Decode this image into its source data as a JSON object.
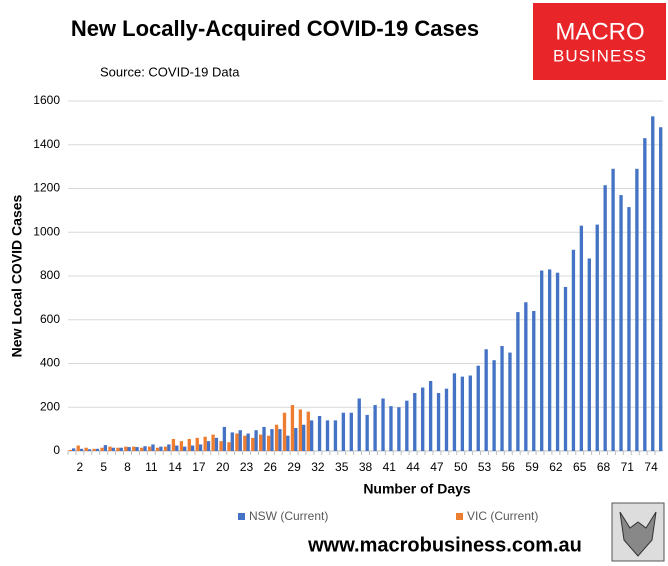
{
  "chart_data": {
    "type": "bar",
    "title": "New Locally-Acquired COVID-19 Cases",
    "subtitle": "Source: COVID-19 Data",
    "logo": [
      "MACRO",
      "BUSINESS"
    ],
    "footer": "www.macrobusiness.com.au",
    "x_label": "Number of Days",
    "y_label": "New Local COVID Cases",
    "categories": [
      null,
      2,
      null,
      null,
      5,
      null,
      null,
      8,
      null,
      null,
      11,
      null,
      null,
      14,
      null,
      null,
      17,
      null,
      null,
      20,
      null,
      null,
      23,
      null,
      null,
      26,
      null,
      null,
      29,
      null,
      null,
      32,
      null,
      null,
      35,
      null,
      null,
      38,
      null,
      null,
      41,
      null,
      null,
      44,
      null,
      null,
      47,
      null,
      null,
      50,
      null,
      null,
      53,
      null,
      null,
      56,
      null,
      null,
      59,
      null,
      null,
      62,
      null,
      null,
      65,
      null,
      null,
      68,
      null,
      null,
      71,
      null,
      null,
      74,
      null
    ],
    "series": [
      {
        "name": "NSW (Current)",
        "color": "#4472c4",
        "values": [
          12,
          10,
          8,
          10,
          27,
          15,
          15,
          18,
          18,
          22,
          30,
          20,
          30,
          25,
          20,
          25,
          30,
          45,
          60,
          110,
          85,
          95,
          80,
          95,
          110,
          100,
          100,
          70,
          105,
          120,
          140,
          160,
          140,
          140,
          175,
          175,
          240,
          165,
          210,
          240,
          205,
          200,
          230,
          265,
          290,
          320,
          265,
          285,
          355,
          340,
          345,
          390,
          465,
          415,
          480,
          450,
          635,
          680,
          640,
          825,
          830,
          815,
          750,
          920,
          1030,
          880,
          1035,
          1215,
          1290,
          1170,
          1115,
          1290,
          1430,
          1530,
          1480
        ]
      },
      {
        "name": "VIC (Current)",
        "color": "#ed7d31",
        "values": [
          5,
          25,
          15,
          10,
          15,
          20,
          15,
          20,
          20,
          15,
          20,
          15,
          20,
          55,
          45,
          55,
          60,
          65,
          75,
          45,
          40,
          80,
          70,
          60,
          75,
          70,
          120,
          175,
          210,
          190,
          180,
          null,
          null,
          null,
          null,
          null,
          null,
          null,
          null,
          null,
          null,
          null,
          null,
          null,
          null,
          null,
          null,
          null,
          null,
          null,
          null,
          null,
          null,
          null,
          null,
          null,
          null,
          null,
          null,
          null,
          null,
          null,
          null,
          null,
          null,
          null,
          null,
          null,
          null,
          null,
          null,
          null,
          null,
          null,
          null
        ]
      }
    ],
    "ylim": [
      0,
      1600
    ],
    "yticks": [
      0,
      200,
      400,
      600,
      800,
      1000,
      1200,
      1400,
      1600
    ],
    "grid": true,
    "legend": "bottom"
  }
}
